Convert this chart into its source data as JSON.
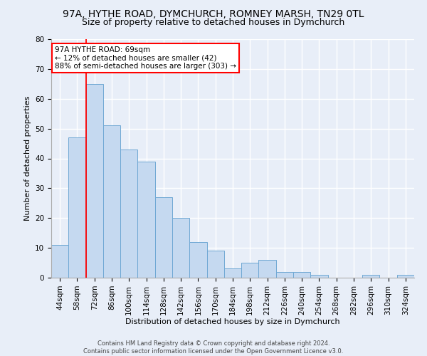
{
  "title1": "97A, HYTHE ROAD, DYMCHURCH, ROMNEY MARSH, TN29 0TL",
  "title2": "Size of property relative to detached houses in Dymchurch",
  "xlabel": "Distribution of detached houses by size in Dymchurch",
  "ylabel": "Number of detached properties",
  "categories": [
    "44sqm",
    "58sqm",
    "72sqm",
    "86sqm",
    "100sqm",
    "114sqm",
    "128sqm",
    "142sqm",
    "156sqm",
    "170sqm",
    "184sqm",
    "198sqm",
    "212sqm",
    "226sqm",
    "240sqm",
    "254sqm",
    "268sqm",
    "282sqm",
    "296sqm",
    "310sqm",
    "324sqm"
  ],
  "values": [
    11,
    47,
    65,
    51,
    43,
    39,
    27,
    20,
    12,
    9,
    3,
    5,
    6,
    2,
    2,
    1,
    0,
    0,
    1,
    0,
    1
  ],
  "bar_color": "#c5d9f0",
  "bar_edge_color": "#6fa8d4",
  "ylim": [
    0,
    80
  ],
  "yticks": [
    0,
    10,
    20,
    30,
    40,
    50,
    60,
    70,
    80
  ],
  "red_line_x": 1.5,
  "annotation_title": "97A HYTHE ROAD: 69sqm",
  "annotation_line1": "← 12% of detached houses are smaller (42)",
  "annotation_line2": "88% of semi-detached houses are larger (303) →",
  "footer1": "Contains HM Land Registry data © Crown copyright and database right 2024.",
  "footer2": "Contains public sector information licensed under the Open Government Licence v3.0.",
  "bg_color": "#e8eef8",
  "grid_color": "#ffffff",
  "title_fontsize": 10,
  "subtitle_fontsize": 9,
  "ann_fontsize": 7.5,
  "axis_fontsize": 7.5,
  "footer_fontsize": 6,
  "ylabel_fontsize": 8,
  "xlabel_fontsize": 8
}
